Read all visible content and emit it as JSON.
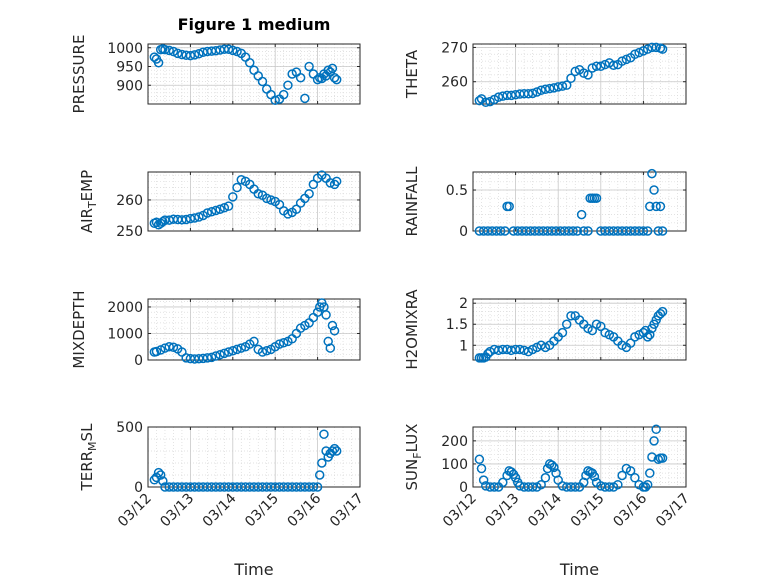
{
  "figure": {
    "title": "Figure 1 medium",
    "marker_color": "#0072BD",
    "xlabel": "Time",
    "x_ticks": [
      "03/12",
      "03/13",
      "03/14",
      "03/15",
      "03/16",
      "03/17"
    ]
  },
  "chart_data": [
    {
      "type": "scatter",
      "ylabel": "PRESSURE",
      "xlim": [
        0,
        5
      ],
      "ylim": [
        850,
        1010
      ],
      "yticks": [
        900,
        950,
        1000
      ],
      "grid": true,
      "x": [
        0.15,
        0.2,
        0.25,
        0.3,
        0.35,
        0.4,
        0.5,
        0.6,
        0.7,
        0.8,
        0.9,
        1.0,
        1.1,
        1.2,
        1.3,
        1.4,
        1.5,
        1.6,
        1.7,
        1.8,
        1.9,
        2.0,
        2.1,
        2.2,
        2.3,
        2.4,
        2.5,
        2.6,
        2.7,
        2.8,
        2.9,
        3.0,
        3.1,
        3.2,
        3.3,
        3.4,
        3.5,
        3.6,
        3.7,
        3.8,
        3.9,
        4.0,
        4.05,
        4.1,
        4.15,
        4.2,
        4.25,
        4.3,
        4.35,
        4.4,
        4.45
      ],
      "y": [
        975,
        970,
        960,
        995,
        997,
        995,
        993,
        990,
        985,
        982,
        980,
        979,
        981,
        984,
        988,
        990,
        991,
        992,
        994,
        996,
        996,
        993,
        990,
        985,
        975,
        960,
        940,
        925,
        910,
        890,
        875,
        860,
        863,
        875,
        900,
        930,
        935,
        920,
        865,
        950,
        930,
        915,
        920,
        918,
        930,
        925,
        940,
        935,
        945,
        920,
        915
      ]
    },
    {
      "type": "scatter",
      "ylabel": "THETA",
      "xlim": [
        0,
        5
      ],
      "ylim": [
        253.5,
        271
      ],
      "yticks": [
        260,
        270
      ],
      "grid": true,
      "x": [
        0.15,
        0.2,
        0.3,
        0.4,
        0.5,
        0.6,
        0.7,
        0.8,
        0.9,
        1.0,
        1.1,
        1.2,
        1.3,
        1.4,
        1.5,
        1.6,
        1.7,
        1.8,
        1.9,
        2.0,
        2.1,
        2.2,
        2.3,
        2.4,
        2.5,
        2.6,
        2.7,
        2.8,
        2.9,
        3.0,
        3.1,
        3.2,
        3.3,
        3.4,
        3.5,
        3.6,
        3.7,
        3.8,
        3.9,
        4.0,
        4.1,
        4.2,
        4.3,
        4.4,
        4.45
      ],
      "y": [
        254.5,
        255,
        254,
        254.2,
        254.8,
        255.5,
        255.8,
        256,
        256,
        256.2,
        256.4,
        256.5,
        256.5,
        256.6,
        257,
        257.5,
        257.8,
        258,
        258.2,
        258.5,
        258.7,
        259,
        261,
        263,
        263.5,
        262.5,
        262,
        264,
        264.5,
        264.5,
        265,
        265.5,
        264.8,
        265,
        266,
        266.5,
        267,
        268,
        268.5,
        269,
        269.5,
        270,
        270,
        269.8,
        269.5
      ]
    },
    {
      "type": "scatter",
      "ylabel": "AIR_TEMP",
      "xlim": [
        0,
        5
      ],
      "ylim": [
        250,
        269
      ],
      "yticks": [
        250,
        260
      ],
      "grid": true,
      "x": [
        0.15,
        0.2,
        0.25,
        0.3,
        0.35,
        0.4,
        0.5,
        0.6,
        0.7,
        0.8,
        0.9,
        1.0,
        1.1,
        1.2,
        1.3,
        1.4,
        1.5,
        1.6,
        1.7,
        1.8,
        1.9,
        2.0,
        2.1,
        2.2,
        2.3,
        2.4,
        2.5,
        2.6,
        2.7,
        2.8,
        2.9,
        3.0,
        3.1,
        3.2,
        3.3,
        3.4,
        3.5,
        3.6,
        3.7,
        3.8,
        3.9,
        4.0,
        4.1,
        4.2,
        4.3,
        4.4,
        4.45
      ],
      "y": [
        252.5,
        252.8,
        252,
        252.5,
        253,
        253.5,
        253.5,
        253.8,
        253.7,
        253.6,
        253.7,
        254,
        254.2,
        254.5,
        255,
        255.8,
        256.2,
        256.6,
        257,
        257.5,
        258,
        261,
        264,
        266.5,
        266,
        265,
        263.5,
        262,
        261.5,
        260.5,
        260,
        259.5,
        258.5,
        256.5,
        255.5,
        256,
        257,
        259,
        260.5,
        262,
        265,
        267,
        268,
        267,
        265.5,
        265,
        266
      ]
    },
    {
      "type": "scatter",
      "ylabel": "RAINFALL",
      "xlim": [
        0,
        5
      ],
      "ylim": [
        0,
        0.72
      ],
      "yticks": [
        0,
        0.5
      ],
      "grid": true,
      "x": [
        0.15,
        0.25,
        0.35,
        0.45,
        0.55,
        0.65,
        0.75,
        0.8,
        0.85,
        0.95,
        1.05,
        1.15,
        1.25,
        1.35,
        1.45,
        1.55,
        1.65,
        1.75,
        1.85,
        1.95,
        2.05,
        2.15,
        2.25,
        2.35,
        2.45,
        2.55,
        2.6,
        2.7,
        2.75,
        2.8,
        2.85,
        2.9,
        3.0,
        3.1,
        3.2,
        3.3,
        3.4,
        3.5,
        3.6,
        3.7,
        3.8,
        3.9,
        4.0,
        4.1,
        4.15,
        4.2,
        4.25,
        4.3,
        4.35,
        4.4,
        4.45
      ],
      "y": [
        0,
        0,
        0,
        0,
        0,
        0,
        0,
        0.3,
        0.3,
        0,
        0,
        0,
        0,
        0,
        0,
        0,
        0,
        0,
        0,
        0,
        0,
        0,
        0,
        0,
        0,
        0.2,
        0,
        0,
        0.4,
        0.4,
        0.4,
        0.4,
        0,
        0,
        0,
        0,
        0,
        0,
        0,
        0,
        0,
        0,
        0,
        0,
        0.3,
        0.7,
        0.5,
        0.3,
        0,
        0.3,
        0
      ]
    },
    {
      "type": "scatter",
      "ylabel": "MIXDEPTH",
      "xlim": [
        0,
        5
      ],
      "ylim": [
        0,
        2300
      ],
      "yticks": [
        0,
        1000,
        2000
      ],
      "grid": true,
      "x": [
        0.15,
        0.2,
        0.3,
        0.4,
        0.5,
        0.6,
        0.7,
        0.8,
        0.9,
        1.0,
        1.1,
        1.2,
        1.3,
        1.4,
        1.5,
        1.6,
        1.7,
        1.8,
        1.9,
        2.0,
        2.1,
        2.2,
        2.3,
        2.4,
        2.5,
        2.6,
        2.7,
        2.8,
        2.9,
        3.0,
        3.1,
        3.2,
        3.3,
        3.4,
        3.5,
        3.6,
        3.7,
        3.8,
        3.9,
        4.0,
        4.05,
        4.1,
        4.15,
        4.2,
        4.25,
        4.3,
        4.35,
        4.4
      ],
      "y": [
        300,
        320,
        380,
        450,
        500,
        480,
        420,
        300,
        80,
        50,
        40,
        45,
        60,
        80,
        100,
        150,
        200,
        250,
        300,
        350,
        400,
        450,
        500,
        600,
        700,
        400,
        300,
        350,
        400,
        500,
        600,
        650,
        700,
        800,
        1000,
        1200,
        1300,
        1400,
        1600,
        1800,
        2000,
        2150,
        2000,
        1700,
        700,
        450,
        1300,
        1100
      ]
    },
    {
      "type": "scatter",
      "ylabel": "H2OMIXRA",
      "xlim": [
        0,
        5
      ],
      "ylim": [
        0.65,
        2.1
      ],
      "yticks": [
        1,
        1.5,
        2
      ],
      "grid": true,
      "x": [
        0.15,
        0.2,
        0.25,
        0.3,
        0.35,
        0.4,
        0.5,
        0.6,
        0.7,
        0.8,
        0.9,
        1.0,
        1.1,
        1.2,
        1.3,
        1.4,
        1.5,
        1.6,
        1.7,
        1.8,
        1.9,
        2.0,
        2.1,
        2.2,
        2.3,
        2.4,
        2.5,
        2.6,
        2.7,
        2.8,
        2.9,
        3.0,
        3.1,
        3.2,
        3.3,
        3.4,
        3.5,
        3.6,
        3.7,
        3.8,
        3.9,
        4.0,
        4.05,
        4.1,
        4.15,
        4.2,
        4.25,
        4.3,
        4.35,
        4.4,
        4.45
      ],
      "y": [
        0.7,
        0.7,
        0.7,
        0.72,
        0.8,
        0.85,
        0.9,
        0.88,
        0.9,
        0.9,
        0.88,
        0.9,
        0.9,
        0.88,
        0.85,
        0.9,
        0.95,
        1.0,
        0.95,
        1.0,
        1.1,
        1.2,
        1.3,
        1.5,
        1.7,
        1.7,
        1.6,
        1.5,
        1.4,
        1.35,
        1.5,
        1.45,
        1.3,
        1.25,
        1.2,
        1.1,
        1.0,
        0.95,
        1.05,
        1.2,
        1.25,
        1.3,
        1.35,
        1.2,
        1.25,
        1.4,
        1.5,
        1.6,
        1.7,
        1.75,
        1.8
      ]
    },
    {
      "type": "scatter",
      "ylabel": "TERR_MSL",
      "xlim": [
        0,
        5
      ],
      "ylim": [
        0,
        500
      ],
      "yticks": [
        0,
        500
      ],
      "grid": true,
      "x": [
        0.15,
        0.2,
        0.25,
        0.3,
        0.35,
        0.4,
        0.5,
        0.6,
        0.7,
        0.8,
        0.9,
        1.0,
        1.1,
        1.2,
        1.3,
        1.4,
        1.5,
        1.6,
        1.7,
        1.8,
        1.9,
        2.0,
        2.1,
        2.2,
        2.3,
        2.4,
        2.5,
        2.6,
        2.7,
        2.8,
        2.9,
        3.0,
        3.1,
        3.2,
        3.3,
        3.4,
        3.5,
        3.6,
        3.7,
        3.8,
        3.9,
        4.0,
        4.05,
        4.1,
        4.15,
        4.2,
        4.25,
        4.3,
        4.35,
        4.4,
        4.45
      ],
      "y": [
        60,
        80,
        120,
        100,
        50,
        0,
        0,
        0,
        0,
        0,
        0,
        0,
        0,
        0,
        0,
        0,
        0,
        0,
        0,
        0,
        0,
        0,
        0,
        0,
        0,
        0,
        0,
        0,
        0,
        0,
        0,
        0,
        0,
        0,
        0,
        0,
        0,
        0,
        0,
        0,
        0,
        0,
        100,
        200,
        440,
        300,
        250,
        280,
        300,
        320,
        300
      ]
    },
    {
      "type": "scatter",
      "ylabel": "SUN_FLUX",
      "xlim": [
        0,
        5
      ],
      "ylim": [
        0,
        260
      ],
      "yticks": [
        0,
        100,
        200
      ],
      "grid": true,
      "x": [
        0.15,
        0.2,
        0.25,
        0.3,
        0.4,
        0.5,
        0.6,
        0.7,
        0.8,
        0.85,
        0.9,
        0.95,
        1.0,
        1.05,
        1.1,
        1.2,
        1.3,
        1.4,
        1.5,
        1.6,
        1.7,
        1.75,
        1.8,
        1.85,
        1.9,
        1.95,
        2.0,
        2.1,
        2.2,
        2.3,
        2.4,
        2.5,
        2.6,
        2.65,
        2.7,
        2.75,
        2.8,
        2.85,
        2.9,
        3.0,
        3.1,
        3.2,
        3.3,
        3.4,
        3.5,
        3.6,
        3.7,
        3.8,
        3.9,
        4.0,
        4.05,
        4.1,
        4.15,
        4.2,
        4.25,
        4.3,
        4.35,
        4.4,
        4.45
      ],
      "y": [
        120,
        80,
        30,
        5,
        0,
        0,
        0,
        20,
        50,
        70,
        65,
        55,
        40,
        20,
        5,
        0,
        0,
        0,
        0,
        10,
        40,
        80,
        100,
        95,
        85,
        60,
        30,
        5,
        0,
        0,
        0,
        0,
        20,
        50,
        70,
        65,
        60,
        45,
        20,
        5,
        0,
        0,
        0,
        10,
        50,
        80,
        70,
        40,
        10,
        0,
        0,
        10,
        60,
        130,
        200,
        250,
        120,
        125,
        125
      ]
    }
  ]
}
